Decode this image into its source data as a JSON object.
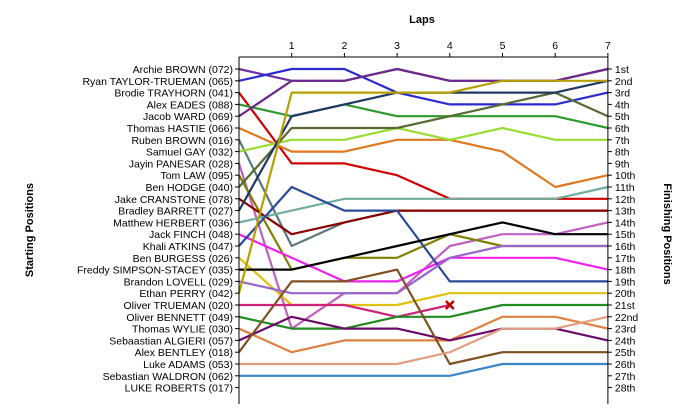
{
  "chart_data": {
    "type": "line",
    "title": "",
    "top_axis_label": "Laps",
    "left_axis_label": "Starting Positions",
    "right_axis_label": "Finishing Positions",
    "laps": [
      0,
      1,
      2,
      3,
      4,
      5,
      6,
      7
    ],
    "lap_tick_labels": [
      "1",
      "2",
      "3",
      "4",
      "5",
      "6",
      "7"
    ],
    "finishing_labels": [
      "1st",
      "2nd",
      "3rd",
      "4th",
      "5th",
      "6th",
      "7th",
      "8th",
      "9th",
      "10th",
      "11th",
      "12th",
      "13th",
      "14th",
      "15th",
      "16th",
      "17th",
      "18th",
      "19th",
      "20th",
      "21st",
      "22nd",
      "23rd",
      "24th",
      "25th",
      "26th",
      "27th",
      "28th"
    ],
    "grid": false,
    "series": [
      {
        "name": "Archie BROWN (072)",
        "color": "#7030a0",
        "values": [
          1,
          2,
          2,
          1,
          2,
          2,
          2,
          1
        ]
      },
      {
        "name": "Ryan TAYLOR-TRUEMAN (065)",
        "color": "#2b2bd0",
        "values": [
          2,
          1,
          1,
          3,
          4,
          4,
          4,
          3
        ]
      },
      {
        "name": "Brodie TRAYHORN (041)",
        "color": "#d00000",
        "values": [
          3,
          9,
          9,
          10,
          12,
          12,
          12,
          12
        ]
      },
      {
        "name": "Alex EADES (088)",
        "color": "#2e9a2e",
        "values": [
          4,
          5,
          4,
          5,
          5,
          5,
          5,
          6
        ]
      },
      {
        "name": "Jacob WARD (069)",
        "color": "#6b2a8a",
        "values": [
          5,
          2,
          2,
          1,
          2,
          2,
          2,
          1
        ]
      },
      {
        "name": "Thomas HASTIE (066)",
        "color": "#e07820",
        "values": [
          6,
          8,
          8,
          7,
          7,
          8,
          11,
          10
        ]
      },
      {
        "name": "Ruben BROWN (016)",
        "color": "#5a7a7a",
        "values": [
          7,
          16,
          14,
          13,
          13,
          13,
          13,
          13
        ]
      },
      {
        "name": "Samuel GAY (032)",
        "color": "#99dd33",
        "values": [
          8,
          7,
          7,
          6,
          7,
          6,
          7,
          7
        ]
      },
      {
        "name": "Jayin PANESAR (028)",
        "color": "#c060c0",
        "values": [
          9,
          23,
          20,
          20,
          16,
          15,
          15,
          14
        ]
      },
      {
        "name": "Tom LAW (095)",
        "color": "#808000",
        "values": [
          10,
          18,
          17,
          17,
          15,
          16,
          16,
          16
        ]
      },
      {
        "name": "Ben HODGE (040)",
        "color": "#556b2f",
        "values": [
          11,
          6,
          6,
          6,
          5,
          4,
          3,
          5
        ]
      },
      {
        "name": "Jake CRANSTONE (078)",
        "color": "#8b0000",
        "values": [
          12,
          15,
          14,
          13,
          13,
          13,
          13,
          13
        ]
      },
      {
        "name": "Bradley BARRETT (027)",
        "color": "#1f3864",
        "values": [
          13,
          5,
          4,
          3,
          3,
          3,
          3,
          2
        ]
      },
      {
        "name": "Matthew HERBERT (036)",
        "color": "#70ad9e",
        "values": [
          14,
          13,
          12,
          12,
          12,
          12,
          12,
          11
        ]
      },
      {
        "name": "Jack FINCH (048)",
        "color": "#ee22ee",
        "values": [
          15,
          17,
          19,
          19,
          17,
          17,
          17,
          18
        ]
      },
      {
        "name": "Khali ATKINS (047)",
        "color": "#2a4a9a",
        "values": [
          16,
          11,
          13,
          13,
          19,
          19,
          19,
          19
        ]
      },
      {
        "name": "Ben BURGESS (026)",
        "color": "#e0c010",
        "values": [
          17,
          21,
          21,
          21,
          20,
          20,
          20,
          20
        ]
      },
      {
        "name": "Freddy SIMPSON-STACEY (035)",
        "color": "#000000",
        "values": [
          18,
          18,
          17,
          16,
          15,
          14,
          15,
          15
        ]
      },
      {
        "name": "Brandon LOVELL (029)",
        "color": "#9966cc",
        "values": [
          19,
          20,
          20,
          20,
          17,
          16,
          16,
          16
        ]
      },
      {
        "name": "Ethan PERRY (042)",
        "color": "#b5a000",
        "values": [
          20,
          3,
          3,
          3,
          3,
          2,
          2,
          2
        ]
      },
      {
        "name": "Oliver TRUEMAN (020)",
        "color": "#cc2277",
        "values": [
          21,
          21,
          21,
          22,
          21
        ]
      },
      {
        "name": "Oliver BENNETT (049)",
        "color": "#228b22",
        "values": [
          22,
          23,
          23,
          22,
          22,
          21,
          21,
          21
        ]
      },
      {
        "name": "Thomas WYLIE (030)",
        "color": "#e08040",
        "values": [
          23,
          25,
          24,
          24,
          24,
          22,
          22,
          23
        ]
      },
      {
        "name": "Sebaastian ALGIERI (057)",
        "color": "#6b0a6b",
        "values": [
          24,
          22,
          23,
          23,
          24,
          23,
          23,
          24
        ]
      },
      {
        "name": "Alex BENTLEY (018)",
        "color": "#7f5020",
        "values": [
          25,
          19,
          19,
          18,
          26,
          25,
          25,
          25
        ]
      },
      {
        "name": "Luke ADAMS (053)",
        "color": "#e0a080",
        "values": [
          26,
          26,
          26,
          26,
          25,
          23,
          23,
          22
        ]
      },
      {
        "name": "Sebastian WALDRON (062)",
        "color": "#3d85c6",
        "values": [
          27,
          27,
          27,
          27,
          27,
          26,
          26,
          26
        ]
      },
      {
        "name": "LUKE ROBERTS (017)",
        "color": "#999999",
        "values": [
          28
        ]
      }
    ],
    "retirements": [
      {
        "name": "Oliver TRUEMAN (020)",
        "lap": 4,
        "marker": "x",
        "color": "#c00000"
      }
    ]
  }
}
